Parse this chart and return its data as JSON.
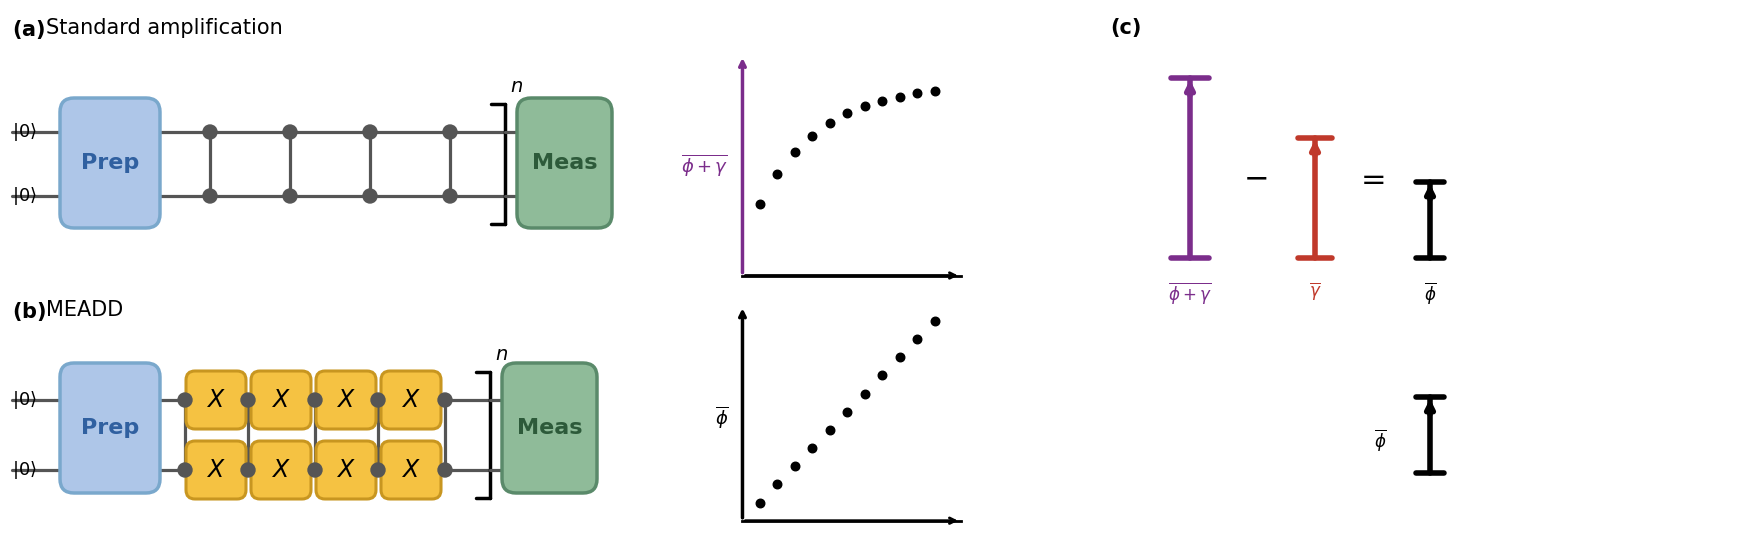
{
  "fig_width": 17.47,
  "fig_height": 5.51,
  "bg_color": "#ffffff",
  "prep_color": "#aec6e8",
  "prep_edge_color": "#7aa8cc",
  "meas_color": "#8fbb99",
  "meas_edge_color": "#5a8a6a",
  "x_gate_color": "#f5c242",
  "x_gate_edge_color": "#c89620",
  "wire_color": "#555555",
  "dot_color": "#555555",
  "label_a": "Standard amplification",
  "label_b": "MEADD",
  "label_c": "(c)",
  "purple_color": "#7b2d8b",
  "red_color": "#c0392b",
  "n_pts": 11
}
